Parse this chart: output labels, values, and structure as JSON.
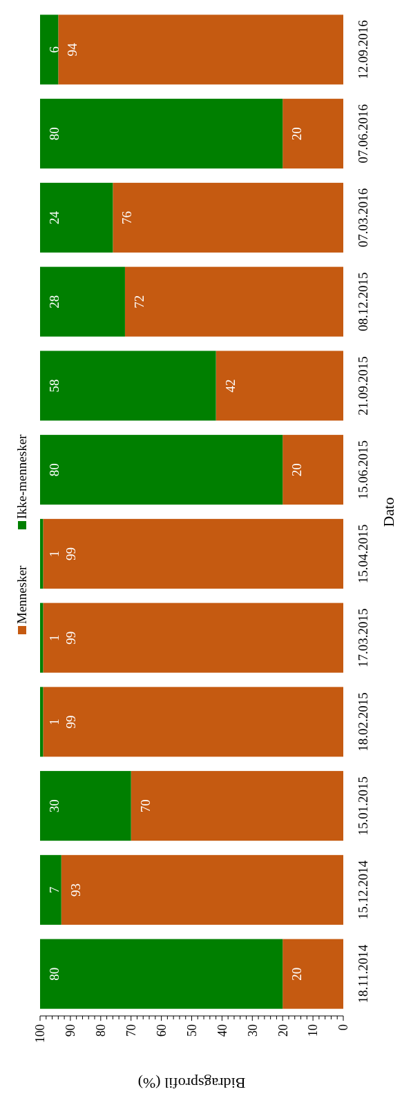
{
  "chart_data": {
    "type": "bar",
    "stacked": true,
    "orientation": "horizontal",
    "xlabel": "Bidragsprofil (%)",
    "ylabel": "Dato",
    "categories": [
      "12.09.2016",
      "07.06.2016",
      "07.03.2016",
      "08.12.2015",
      "21.09.2015",
      "15.06.2015",
      "15.04.2015",
      "17.03.2015",
      "18.02.2015",
      "15.01.2015",
      "15.12.2014",
      "18.11.2014"
    ],
    "series": [
      {
        "name": "Mennesker",
        "color": "#c55a11",
        "values": [
          94,
          20,
          76,
          72,
          42,
          20,
          99,
          99,
          99,
          70,
          93,
          20
        ]
      },
      {
        "name": "Ikke-mennesker",
        "color": "#007f00",
        "values": [
          6,
          80,
          24,
          28,
          58,
          80,
          1,
          1,
          1,
          30,
          7,
          80
        ]
      }
    ],
    "xlim": [
      100,
      0
    ],
    "xticks": [
      100,
      {
        "value": 98,
        "label": null
      },
      {
        "value": 96,
        "label": null
      },
      {
        "value": 94,
        "label": null
      },
      {
        "value": 92,
        "label": null
      },
      90,
      {
        "value": 88,
        "label": null
      },
      {
        "value": 86,
        "label": null
      },
      {
        "value": 84,
        "label": null
      },
      {
        "value": 82,
        "label": null
      },
      80,
      {
        "value": 78,
        "label": null
      },
      {
        "value": 76,
        "label": null
      },
      {
        "value": 74,
        "label": null
      },
      {
        "value": 72,
        "label": null
      },
      70,
      {
        "value": 68,
        "label": null
      },
      {
        "value": 66,
        "label": null
      },
      {
        "value": 64,
        "label": null
      },
      {
        "value": 62,
        "label": null
      },
      60,
      {
        "value": 58,
        "label": null
      },
      {
        "value": 56,
        "label": null
      },
      {
        "value": 54,
        "label": null
      },
      {
        "value": 52,
        "label": null
      },
      50,
      {
        "value": 48,
        "label": null
      },
      {
        "value": 46,
        "label": null
      },
      {
        "value": 44,
        "label": null
      },
      {
        "value": 42,
        "label": null
      },
      40,
      {
        "value": 38,
        "label": null
      },
      {
        "value": 36,
        "label": null
      },
      {
        "value": 34,
        "label": null
      },
      {
        "value": 32,
        "label": null
      },
      30,
      {
        "value": 28,
        "label": null
      },
      {
        "value": 26,
        "label": null
      },
      {
        "value": 24,
        "label": null
      },
      {
        "value": 22,
        "label": null
      },
      20,
      {
        "value": 18,
        "label": null
      },
      {
        "value": 16,
        "label": null
      },
      {
        "value": 14,
        "label": null
      },
      {
        "value": 12,
        "label": null
      },
      10,
      {
        "value": 8,
        "label": null
      },
      {
        "value": 6,
        "label": null
      },
      {
        "value": 4,
        "label": null
      },
      {
        "value": 2,
        "label": null
      },
      0
    ],
    "data_labels": true,
    "legend": "left"
  }
}
